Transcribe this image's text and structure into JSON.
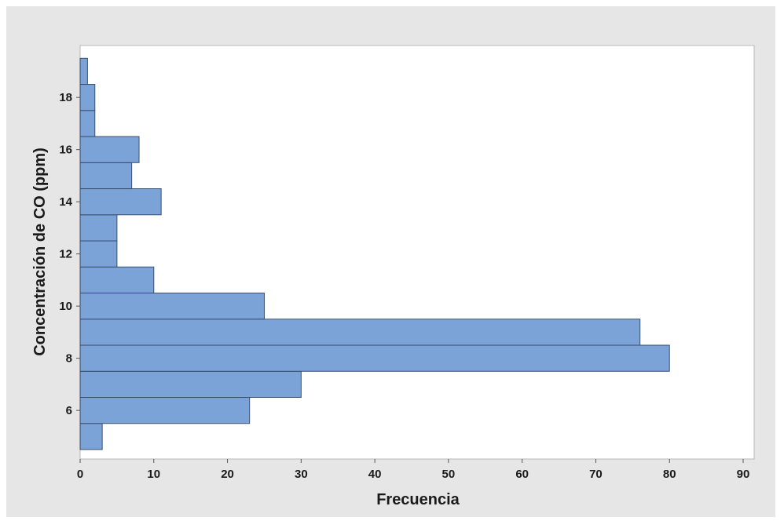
{
  "chart_data": {
    "type": "bar",
    "orientation": "horizontal",
    "xlabel": "Frecuencia",
    "ylabel": "Concentración de CO (ppm)",
    "xlim": [
      0,
      90
    ],
    "ylim": [
      4.5,
      19.75
    ],
    "xticks": [
      0,
      10,
      20,
      30,
      40,
      50,
      60,
      70,
      80,
      90
    ],
    "yticks": [
      6,
      8,
      10,
      12,
      14,
      16,
      18
    ],
    "bin_width": 1,
    "bins": [
      {
        "center": 5,
        "value": 3
      },
      {
        "center": 6,
        "value": 23
      },
      {
        "center": 7,
        "value": 30
      },
      {
        "center": 8,
        "value": 80
      },
      {
        "center": 9,
        "value": 76
      },
      {
        "center": 10,
        "value": 25
      },
      {
        "center": 11,
        "value": 10
      },
      {
        "center": 12,
        "value": 5
      },
      {
        "center": 13,
        "value": 5
      },
      {
        "center": 14,
        "value": 11
      },
      {
        "center": 15,
        "value": 7
      },
      {
        "center": 16,
        "value": 8
      },
      {
        "center": 17,
        "value": 2
      },
      {
        "center": 18,
        "value": 2
      },
      {
        "center": 19,
        "value": 1
      }
    ],
    "bar_color": "#7ba3d8",
    "bar_edge_color": "#3a4e6b",
    "grid": false,
    "legend": "none"
  }
}
